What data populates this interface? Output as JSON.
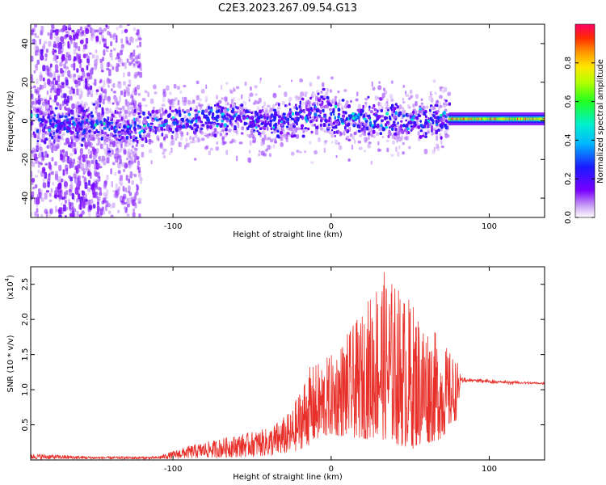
{
  "title": "C2E3.2023.267.09.54.G13",
  "chart_data": [
    {
      "type": "heatmap",
      "xlabel": "Height of straight line (km)",
      "ylabel": "Frequency (Hz)",
      "xlim": [
        -190,
        135
      ],
      "ylim": [
        -50,
        50
      ],
      "xticks": [
        -100,
        0,
        100
      ],
      "yticks": [
        -40,
        -20,
        0,
        20,
        40
      ],
      "colorbar": {
        "label": "Normalized spectral amplitude",
        "range": [
          0,
          1
        ],
        "ticks": [
          "0.0",
          "0.2",
          "0.4",
          "0.6",
          "0.8"
        ]
      },
      "ridge_center_hz": [
        {
          "x": -190,
          "y": 0
        },
        {
          "x": -130,
          "y": -4
        },
        {
          "x": -100,
          "y": 0
        },
        {
          "x": -60,
          "y": 2
        },
        {
          "x": -40,
          "y": -2
        },
        {
          "x": -15,
          "y": 3
        },
        {
          "x": -5,
          "y": 5
        },
        {
          "x": 0,
          "y": 2
        },
        {
          "x": 40,
          "y": 0
        },
        {
          "x": 75,
          "y": 1
        },
        {
          "x": 135,
          "y": 1
        }
      ]
    },
    {
      "type": "line",
      "xlabel": "Height of straight line (km)",
      "ylabel": "SNR (10 * v/v)",
      "yscale_label": "(x10",
      "yscale_exp": "4",
      "xlim": [
        -190,
        135
      ],
      "ylim": [
        0,
        2.75
      ],
      "xticks": [
        -100,
        0,
        100
      ],
      "yticks": [
        "0.5",
        "1.0",
        "1.5",
        "2.0",
        "2.5"
      ],
      "envelope": [
        {
          "x": -190,
          "lo": 0.01,
          "hi": 0.09
        },
        {
          "x": -150,
          "lo": 0.01,
          "hi": 0.05
        },
        {
          "x": -110,
          "lo": 0.01,
          "hi": 0.05
        },
        {
          "x": -90,
          "lo": 0.02,
          "hi": 0.2
        },
        {
          "x": -70,
          "lo": 0.03,
          "hi": 0.3
        },
        {
          "x": -40,
          "lo": 0.05,
          "hi": 0.45
        },
        {
          "x": -25,
          "lo": 0.1,
          "hi": 0.7
        },
        {
          "x": -15,
          "lo": 0.2,
          "hi": 1.3
        },
        {
          "x": 0,
          "lo": 0.35,
          "hi": 1.5
        },
        {
          "x": 20,
          "lo": 0.3,
          "hi": 2.1
        },
        {
          "x": 31,
          "lo": 0.3,
          "hi": 2.75
        },
        {
          "x": 50,
          "lo": 0.15,
          "hi": 2.3
        },
        {
          "x": 70,
          "lo": 0.3,
          "hi": 1.7
        },
        {
          "x": 80,
          "lo": 0.6,
          "hi": 1.4
        },
        {
          "x": 82,
          "lo": 1.1,
          "hi": 1.18
        },
        {
          "x": 110,
          "lo": 1.08,
          "hi": 1.13
        },
        {
          "x": 135,
          "lo": 1.07,
          "hi": 1.11
        }
      ]
    }
  ]
}
